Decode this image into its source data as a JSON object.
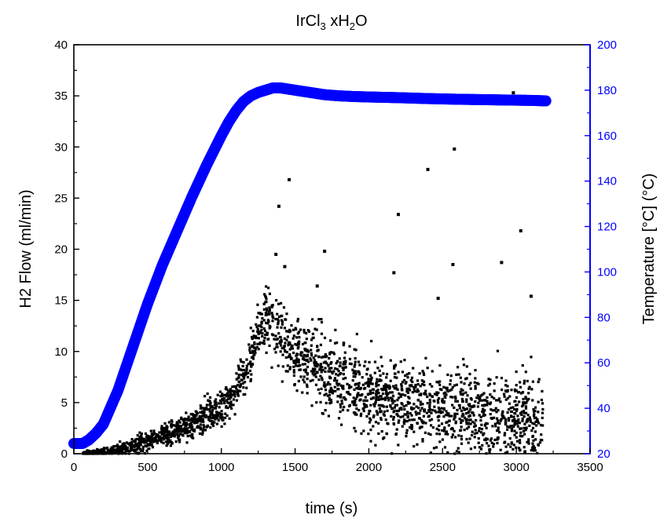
{
  "chart_data": {
    "type": "scatter",
    "title": "IrCl3 xH2O",
    "title_parts": {
      "base": "IrCl",
      "sub1": "3",
      "mid": " xH",
      "sub2": "2",
      "end": "O"
    },
    "xlabel": "time (s)",
    "ylabel": "H2 Flow (ml/min)",
    "y2label": "Temperature [°C] (°C)",
    "xlim": [
      0,
      3500
    ],
    "ylim": [
      0,
      40
    ],
    "y2lim": [
      20,
      200
    ],
    "xticks": [
      0,
      500,
      1000,
      1500,
      2000,
      2500,
      3000,
      3500
    ],
    "yticks": [
      0,
      5,
      10,
      15,
      20,
      25,
      30,
      35,
      40
    ],
    "y2ticks": [
      20,
      40,
      60,
      80,
      100,
      120,
      140,
      160,
      180,
      200
    ],
    "grid": false,
    "colors": {
      "h2_flow": "#000000",
      "temperature": "#0000ff",
      "right_axis": "#0000ff"
    },
    "series": [
      {
        "axis": "left",
        "marker": "square",
        "trend": {
          "x": [
            0,
            250,
            400,
            500,
            600,
            700,
            800,
            900,
            1000,
            1100,
            1150,
            1200,
            1250,
            1300,
            1350,
            1400,
            1500,
            1600,
            1700,
            1800,
            1900,
            2000,
            2200,
            2400,
            2600,
            2800,
            3000,
            3100,
            3180
          ],
          "y": [
            0,
            0.1,
            0.6,
            1.2,
            1.8,
            2.3,
            2.9,
            3.6,
            4.5,
            6.0,
            7.5,
            9.5,
            12.0,
            13.5,
            13.0,
            11.5,
            10.0,
            9.0,
            8.0,
            7.2,
            6.6,
            6.0,
            5.3,
            4.8,
            4.3,
            3.9,
            3.5,
            3.2,
            3.0
          ]
        },
        "spread": {
          "x": [
            0,
            400,
            800,
            1000,
            1200,
            1300,
            1400,
            1600,
            2000,
            2600,
            3180
          ],
          "y": [
            0.05,
            0.8,
            1.2,
            1.6,
            2.2,
            2.5,
            3.0,
            3.3,
            3.6,
            3.8,
            4.0
          ]
        },
        "outliers": {
          "x": [
            1370,
            1460,
            1390,
            1430,
            1700,
            2200,
            2400,
            2580,
            2980,
            3030,
            2170,
            2900,
            2570,
            3100,
            1650,
            2470
          ],
          "y": [
            19.5,
            26.8,
            24.2,
            18.3,
            19.8,
            23.4,
            27.8,
            29.8,
            35.3,
            21.8,
            17.7,
            18.7,
            18.5,
            15.4,
            16.4,
            15.2
          ]
        }
      },
      {
        "axis": "right",
        "marker": "circle",
        "x": [
          0,
          60,
          100,
          150,
          200,
          300,
          400,
          500,
          600,
          700,
          800,
          900,
          1000,
          1050,
          1100,
          1150,
          1200,
          1250,
          1300,
          1350,
          1400,
          1450,
          1500,
          1600,
          1700,
          1800,
          1900,
          2000,
          2200,
          2400,
          2600,
          2800,
          3000,
          3100,
          3200
        ],
        "y": [
          24.5,
          24.5,
          26,
          29,
          33,
          48,
          67,
          86,
          103,
          118,
          133,
          147,
          160,
          166,
          171,
          175,
          177.5,
          179,
          180,
          181,
          181,
          180.5,
          180,
          179,
          178,
          177.5,
          177.2,
          177,
          176.7,
          176.3,
          176,
          175.8,
          175.6,
          175.5,
          175.3
        ]
      }
    ]
  }
}
